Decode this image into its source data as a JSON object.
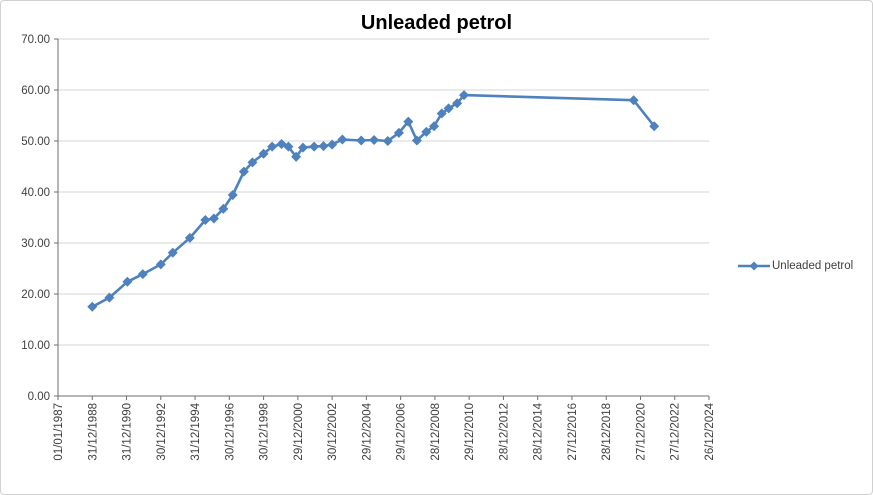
{
  "chart": {
    "title": "Unleaded petrol",
    "legend": {
      "label": "Unleaded petrol",
      "position": "right"
    },
    "colors": {
      "series": "#4F81BD",
      "gridline": "#D6D6D6",
      "axis": "#6E6E6E",
      "tick_text": "#3F3F3F",
      "title_text": "#000000",
      "chart_border": "#D0D0D0",
      "background": "#FFFFFF"
    }
  },
  "chart_data": {
    "type": "line",
    "title": "Unleaded petrol",
    "grid": "horizontal",
    "legend_position": "right",
    "marker": "diamond",
    "smooth_line": true,
    "x_axis": {
      "kind": "date",
      "range_years": [
        1987.0,
        2025.0
      ],
      "tick_labels": [
        "01/01/1987",
        "31/12/1988",
        "31/12/1990",
        "30/12/1992",
        "31/12/1994",
        "30/12/1996",
        "30/12/1998",
        "29/12/2000",
        "30/12/2002",
        "29/12/2004",
        "29/12/2006",
        "28/12/2008",
        "29/12/2010",
        "28/12/2012",
        "28/12/2014",
        "27/12/2016",
        "28/12/2018",
        "27/12/2020",
        "27/12/2022",
        "26/12/2024"
      ],
      "label_rotation_deg": -90
    },
    "y_axis": {
      "range": [
        0,
        70
      ],
      "step": 10,
      "tick_labels": [
        "0.00",
        "10.00",
        "20.00",
        "30.00",
        "40.00",
        "50.00",
        "60.00",
        "70.00"
      ]
    },
    "series": [
      {
        "name": "Unleaded petrol",
        "color": "#4F81BD",
        "points_x_decimal_year": [
          1989.0,
          1990.0,
          1991.05,
          1991.95,
          1993.0,
          1993.7,
          1994.7,
          1995.6,
          1996.1,
          1996.65,
          1997.2,
          1997.85,
          1998.35,
          1999.0,
          1999.5,
          2000.05,
          2000.45,
          2000.9,
          2001.3,
          2001.95,
          2002.5,
          2003.0,
          2003.6,
          2004.7,
          2005.45,
          2006.25,
          2006.9,
          2007.45,
          2007.95,
          2008.5,
          2008.95,
          2009.4,
          2009.8,
          2010.3,
          2010.7,
          2020.6,
          2021.8
        ],
        "values": [
          17.5,
          19.3,
          22.4,
          23.9,
          25.8,
          28.1,
          31.0,
          34.5,
          34.8,
          36.7,
          39.4,
          44.0,
          45.8,
          47.5,
          48.9,
          49.4,
          48.9,
          46.9,
          48.7,
          48.9,
          49.0,
          49.3,
          50.3,
          50.1,
          50.2,
          50.0,
          51.6,
          53.8,
          50.1,
          51.8,
          52.9,
          55.4,
          56.4,
          57.4,
          59.0,
          58.0,
          52.9
        ]
      }
    ]
  }
}
